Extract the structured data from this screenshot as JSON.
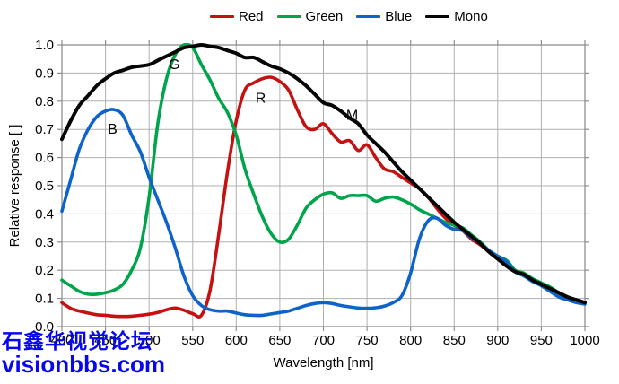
{
  "watermark": {
    "line1": "石鑫华视觉论坛",
    "line2": "visionbbs.com",
    "color": "#0707ee"
  },
  "chart_data": {
    "type": "line",
    "title": "",
    "xlabel": "Wavelength [nm]",
    "ylabel": "Relative response [ ]",
    "xlim": [
      400,
      1000
    ],
    "ylim": [
      0,
      1.0
    ],
    "x_ticks": [
      400,
      450,
      500,
      550,
      600,
      650,
      700,
      750,
      800,
      850,
      900,
      950,
      1000
    ],
    "y_ticks": [
      "0.0",
      "0.1",
      "0.2",
      "0.3",
      "0.4",
      "0.5",
      "0.6",
      "0.7",
      "0.8",
      "0.9",
      "1.0"
    ],
    "grid": true,
    "legend_position": "top-center",
    "grid_color": "#b0b0b0",
    "axis_color": "#8e8e8e",
    "x_start": 400,
    "x_step": 10,
    "series": [
      {
        "name": "Red",
        "color": "#c41212",
        "annotation": {
          "label": "R",
          "x": 628,
          "y": 0.81
        },
        "values": [
          0.085,
          0.065,
          0.055,
          0.048,
          0.042,
          0.04,
          0.037,
          0.036,
          0.037,
          0.04,
          0.044,
          0.05,
          0.06,
          0.066,
          0.058,
          0.046,
          0.04,
          0.13,
          0.33,
          0.55,
          0.73,
          0.84,
          0.865,
          0.88,
          0.885,
          0.87,
          0.84,
          0.77,
          0.71,
          0.7,
          0.72,
          0.685,
          0.655,
          0.66,
          0.625,
          0.645,
          0.6,
          0.56,
          0.55,
          0.53,
          0.51,
          0.49,
          0.46,
          0.42,
          0.385,
          0.36,
          0.34,
          0.31,
          0.29,
          0.265,
          0.24,
          0.22,
          0.195,
          0.185,
          0.165,
          0.15,
          0.13,
          0.115,
          0.1,
          0.09,
          0.085
        ]
      },
      {
        "name": "Green",
        "color": "#00a44a",
        "annotation": {
          "label": "G",
          "x": 529,
          "y": 0.93
        },
        "values": [
          0.165,
          0.145,
          0.125,
          0.115,
          0.115,
          0.12,
          0.13,
          0.15,
          0.2,
          0.28,
          0.46,
          0.72,
          0.88,
          0.965,
          1.0,
          0.99,
          0.93,
          0.875,
          0.81,
          0.76,
          0.68,
          0.56,
          0.47,
          0.39,
          0.33,
          0.3,
          0.31,
          0.36,
          0.42,
          0.45,
          0.47,
          0.475,
          0.455,
          0.465,
          0.465,
          0.465,
          0.445,
          0.455,
          0.46,
          0.45,
          0.435,
          0.415,
          0.4,
          0.385,
          0.37,
          0.36,
          0.35,
          0.325,
          0.3,
          0.27,
          0.25,
          0.235,
          0.2,
          0.19,
          0.17,
          0.155,
          0.14,
          0.12,
          0.105,
          0.09,
          0.085
        ]
      },
      {
        "name": "Blue",
        "color": "#0e63c8",
        "annotation": {
          "label": "B",
          "x": 458,
          "y": 0.7
        },
        "values": [
          0.41,
          0.52,
          0.63,
          0.7,
          0.745,
          0.765,
          0.77,
          0.75,
          0.68,
          0.62,
          0.53,
          0.45,
          0.37,
          0.28,
          0.18,
          0.11,
          0.075,
          0.06,
          0.055,
          0.055,
          0.048,
          0.042,
          0.04,
          0.04,
          0.045,
          0.05,
          0.055,
          0.065,
          0.075,
          0.082,
          0.085,
          0.082,
          0.075,
          0.07,
          0.066,
          0.065,
          0.067,
          0.073,
          0.085,
          0.11,
          0.19,
          0.31,
          0.375,
          0.385,
          0.36,
          0.345,
          0.34,
          0.315,
          0.295,
          0.27,
          0.25,
          0.23,
          0.195,
          0.18,
          0.16,
          0.145,
          0.125,
          0.105,
          0.095,
          0.085,
          0.08
        ]
      },
      {
        "name": "Mono",
        "color": "#050505",
        "annotation": {
          "label": "M",
          "x": 733,
          "y": 0.75
        },
        "values": [
          0.665,
          0.73,
          0.785,
          0.82,
          0.855,
          0.88,
          0.9,
          0.91,
          0.92,
          0.925,
          0.93,
          0.945,
          0.96,
          0.975,
          0.99,
          0.995,
          1.0,
          0.995,
          0.99,
          0.98,
          0.97,
          0.955,
          0.955,
          0.94,
          0.925,
          0.915,
          0.9,
          0.88,
          0.855,
          0.825,
          0.795,
          0.785,
          0.765,
          0.74,
          0.72,
          0.68,
          0.65,
          0.62,
          0.585,
          0.55,
          0.52,
          0.49,
          0.46,
          0.43,
          0.4,
          0.37,
          0.345,
          0.32,
          0.295,
          0.265,
          0.24,
          0.215,
          0.195,
          0.185,
          0.165,
          0.15,
          0.135,
          0.12,
          0.105,
          0.095,
          0.085
        ]
      }
    ]
  }
}
